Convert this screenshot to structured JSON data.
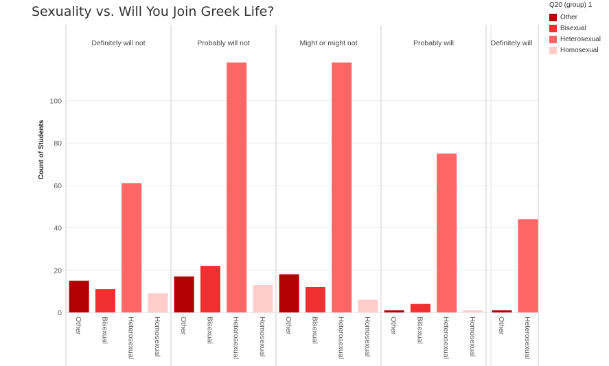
{
  "chart_data": {
    "type": "bar",
    "title": "Sexuality vs. Will You Join Greek Life?",
    "ylabel": "Count of Students",
    "xlabel": "",
    "ylim": [
      0,
      125
    ],
    "yticks": [
      0,
      20,
      40,
      60,
      80,
      100
    ],
    "legend": {
      "title": "Q20 (group) 1",
      "position": "top-right",
      "items": [
        {
          "label": "Other",
          "color": "#b30000"
        },
        {
          "label": "Bisexual",
          "color": "#f03030"
        },
        {
          "label": "Heterosexual",
          "color": "#ff6666"
        },
        {
          "label": "Homosexual",
          "color": "#ffcccc"
        }
      ]
    },
    "panels": [
      {
        "name": "Definitely will not",
        "categories": [
          "Other",
          "Bisexual",
          "Heterosexual",
          "Homosexual"
        ],
        "values": [
          15,
          11,
          61,
          9
        ]
      },
      {
        "name": "Probably will not",
        "categories": [
          "Other",
          "Bisexual",
          "Heterosexual",
          "Homosexual"
        ],
        "values": [
          17,
          22,
          118,
          13
        ]
      },
      {
        "name": "Might or might not",
        "categories": [
          "Other",
          "Bisexual",
          "Heterosexual",
          "Homosexual"
        ],
        "values": [
          18,
          12,
          118,
          6
        ]
      },
      {
        "name": "Probably will",
        "categories": [
          "Other",
          "Bisexual",
          "Heterosexual",
          "Homosexual"
        ],
        "values": [
          1,
          4,
          75,
          1
        ]
      },
      {
        "name": "Definitely will",
        "categories": [
          "Other",
          "Heterosexual"
        ],
        "values": [
          1,
          44
        ]
      }
    ]
  }
}
